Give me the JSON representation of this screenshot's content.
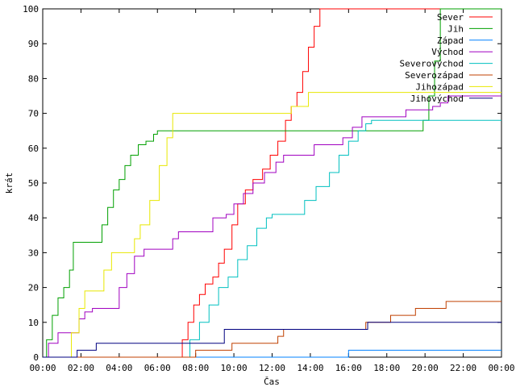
{
  "chart_data": {
    "type": "line",
    "xlabel": "Čas",
    "ylabel": "krát",
    "xlim": [
      0,
      24
    ],
    "ylim": [
      0,
      100
    ],
    "x_ticks": [
      "00:00",
      "02:00",
      "04:00",
      "06:00",
      "08:00",
      "10:00",
      "12:00",
      "14:00",
      "16:00",
      "18:00",
      "20:00",
      "22:00",
      "00:00"
    ],
    "y_ticks": [
      "0",
      "10",
      "20",
      "30",
      "40",
      "50",
      "60",
      "70",
      "80",
      "90",
      "100"
    ],
    "grid": false,
    "legend_position": "top-right",
    "series": [
      {
        "name": "Sever",
        "color": "#ff0000",
        "points": [
          [
            0,
            0
          ],
          [
            7.0,
            0
          ],
          [
            7.3,
            5
          ],
          [
            7.6,
            10
          ],
          [
            7.9,
            15
          ],
          [
            8.2,
            18
          ],
          [
            8.5,
            21
          ],
          [
            8.9,
            23
          ],
          [
            9.2,
            27
          ],
          [
            9.5,
            31
          ],
          [
            9.9,
            38
          ],
          [
            10.2,
            44
          ],
          [
            10.6,
            48
          ],
          [
            11.0,
            51
          ],
          [
            11.5,
            54
          ],
          [
            11.9,
            58
          ],
          [
            12.3,
            62
          ],
          [
            12.7,
            68
          ],
          [
            13.0,
            72
          ],
          [
            13.3,
            76
          ],
          [
            13.6,
            82
          ],
          [
            13.9,
            89
          ],
          [
            14.2,
            95
          ],
          [
            14.5,
            100
          ],
          [
            24,
            100
          ]
        ]
      },
      {
        "name": "Jih",
        "color": "#00a000",
        "points": [
          [
            0,
            0
          ],
          [
            0.2,
            5
          ],
          [
            0.5,
            12
          ],
          [
            0.8,
            17
          ],
          [
            1.1,
            20
          ],
          [
            1.4,
            25
          ],
          [
            1.6,
            33
          ],
          [
            2.8,
            33
          ],
          [
            3.1,
            38
          ],
          [
            3.4,
            43
          ],
          [
            3.7,
            48
          ],
          [
            4.0,
            51
          ],
          [
            4.3,
            55
          ],
          [
            4.6,
            58
          ],
          [
            5.0,
            61
          ],
          [
            5.4,
            62
          ],
          [
            5.8,
            64
          ],
          [
            6.0,
            65
          ],
          [
            19.6,
            65
          ],
          [
            19.9,
            68
          ],
          [
            20.2,
            75
          ],
          [
            20.5,
            85
          ],
          [
            20.8,
            100
          ],
          [
            24,
            100
          ]
        ]
      },
      {
        "name": "Západ",
        "color": "#0080ff",
        "points": [
          [
            0,
            0
          ],
          [
            15.8,
            0
          ],
          [
            16.0,
            2
          ],
          [
            24,
            2
          ]
        ]
      },
      {
        "name": "Východ",
        "color": "#a000c0",
        "points": [
          [
            0,
            0
          ],
          [
            0.3,
            4
          ],
          [
            0.8,
            7
          ],
          [
            1.7,
            7
          ],
          [
            1.9,
            11
          ],
          [
            2.2,
            13
          ],
          [
            2.6,
            14
          ],
          [
            3.8,
            14
          ],
          [
            4.0,
            20
          ],
          [
            4.4,
            24
          ],
          [
            4.8,
            29
          ],
          [
            5.3,
            31
          ],
          [
            6.5,
            31
          ],
          [
            6.8,
            34
          ],
          [
            7.1,
            36
          ],
          [
            8.5,
            36
          ],
          [
            8.9,
            40
          ],
          [
            9.6,
            41
          ],
          [
            10.0,
            44
          ],
          [
            10.5,
            47
          ],
          [
            11.0,
            50
          ],
          [
            11.6,
            53
          ],
          [
            12.2,
            56
          ],
          [
            12.6,
            58
          ],
          [
            13.8,
            58
          ],
          [
            14.2,
            61
          ],
          [
            15.3,
            61
          ],
          [
            15.7,
            63
          ],
          [
            16.2,
            66
          ],
          [
            16.7,
            69
          ],
          [
            18.5,
            69
          ],
          [
            19.0,
            71
          ],
          [
            20.0,
            71
          ],
          [
            20.4,
            72
          ],
          [
            20.8,
            73
          ],
          [
            21.2,
            75
          ],
          [
            24,
            75
          ]
        ]
      },
      {
        "name": "Severovýchod",
        "color": "#00c0c0",
        "points": [
          [
            0,
            0
          ],
          [
            7.3,
            0
          ],
          [
            7.7,
            5
          ],
          [
            8.2,
            10
          ],
          [
            8.7,
            15
          ],
          [
            9.2,
            20
          ],
          [
            9.7,
            23
          ],
          [
            10.2,
            28
          ],
          [
            10.7,
            32
          ],
          [
            11.2,
            37
          ],
          [
            11.7,
            40
          ],
          [
            12.0,
            41
          ],
          [
            13.3,
            41
          ],
          [
            13.7,
            45
          ],
          [
            14.3,
            49
          ],
          [
            15.0,
            53
          ],
          [
            15.5,
            58
          ],
          [
            16.0,
            62
          ],
          [
            16.5,
            65
          ],
          [
            16.9,
            67
          ],
          [
            17.2,
            68
          ],
          [
            24,
            68
          ]
        ]
      },
      {
        "name": "Severozápad",
        "color": "#c04000",
        "points": [
          [
            0,
            0
          ],
          [
            7.8,
            0
          ],
          [
            8.0,
            2
          ],
          [
            9.6,
            2
          ],
          [
            9.9,
            4
          ],
          [
            12.0,
            4
          ],
          [
            12.3,
            6
          ],
          [
            12.6,
            8
          ],
          [
            16.5,
            8
          ],
          [
            16.9,
            10
          ],
          [
            17.9,
            10
          ],
          [
            18.2,
            12
          ],
          [
            19.2,
            12
          ],
          [
            19.5,
            14
          ],
          [
            20.8,
            14
          ],
          [
            21.1,
            16
          ],
          [
            24,
            16
          ]
        ]
      },
      {
        "name": "Jihozápad",
        "color": "#e8e800",
        "points": [
          [
            0,
            0
          ],
          [
            1.2,
            0
          ],
          [
            1.5,
            7
          ],
          [
            1.9,
            14
          ],
          [
            2.2,
            19
          ],
          [
            2.9,
            19
          ],
          [
            3.2,
            25
          ],
          [
            3.6,
            30
          ],
          [
            4.4,
            30
          ],
          [
            4.8,
            34
          ],
          [
            5.1,
            38
          ],
          [
            5.6,
            45
          ],
          [
            6.1,
            55
          ],
          [
            6.5,
            63
          ],
          [
            6.8,
            70
          ],
          [
            12.6,
            70
          ],
          [
            13.0,
            72
          ],
          [
            13.5,
            72
          ],
          [
            13.9,
            76
          ],
          [
            24,
            76
          ]
        ]
      },
      {
        "name": "Jihovýchod",
        "color": "#000080",
        "points": [
          [
            0,
            0
          ],
          [
            1.7,
            0
          ],
          [
            1.8,
            2
          ],
          [
            2.6,
            2
          ],
          [
            2.8,
            4
          ],
          [
            9.3,
            4
          ],
          [
            9.5,
            8
          ],
          [
            16.8,
            8
          ],
          [
            17.0,
            10
          ],
          [
            24,
            10
          ]
        ]
      }
    ]
  }
}
